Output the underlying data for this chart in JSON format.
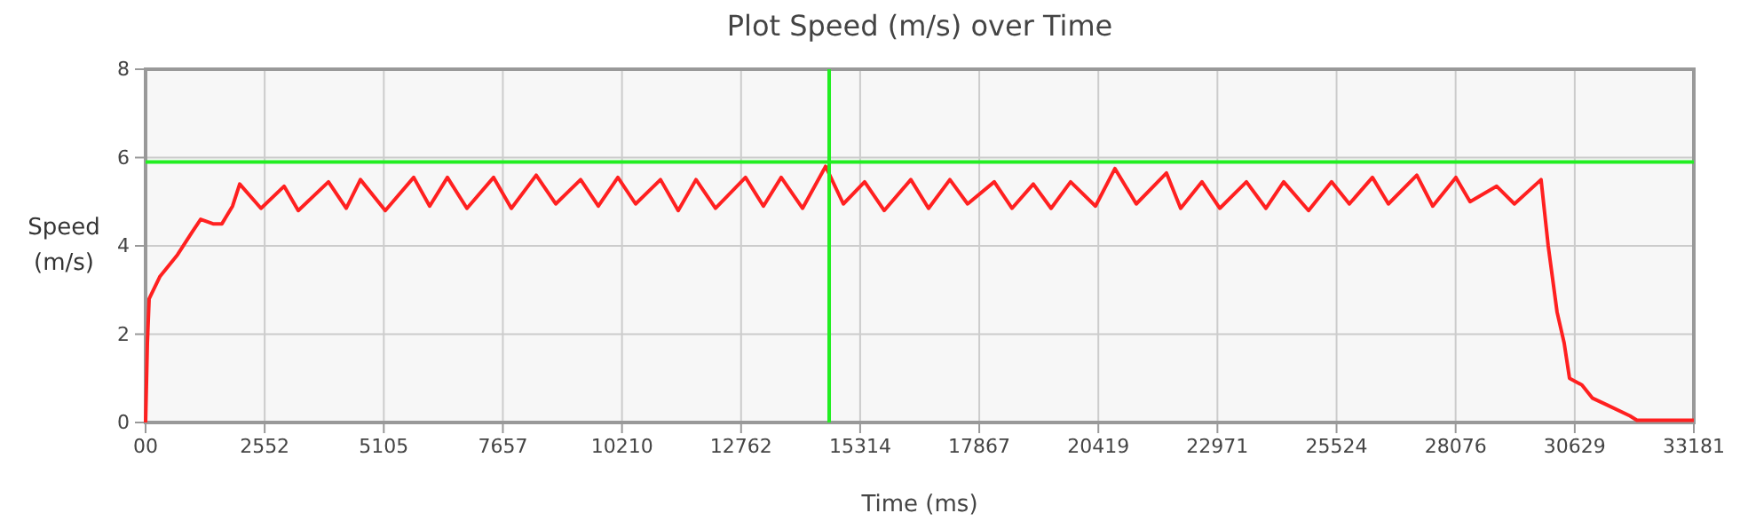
{
  "chart_data": {
    "type": "line",
    "title": "Plot Speed (m/s) over Time",
    "xlabel": "Time (ms)",
    "ylabel": "Speed (m/s)",
    "xlim": [
      0,
      33181
    ],
    "ylim": [
      0,
      8
    ],
    "xticks": [
      {
        "value": 0,
        "label": "00"
      },
      2552,
      5105,
      7657,
      10210,
      12762,
      15314,
      17867,
      20419,
      22971,
      25524,
      28076,
      30629,
      33181
    ],
    "yticks": [
      0,
      2,
      4,
      6,
      8
    ],
    "grid": true,
    "ref_lines": [
      {
        "axis": "y",
        "value": 5.9,
        "color": "#22ee22"
      },
      {
        "axis": "x",
        "value": 14650,
        "color": "#22ee22"
      }
    ],
    "series": [
      {
        "color": "#ff2020",
        "x": [
          0,
          38,
          76,
          304,
          685,
          989,
          1180,
          1446,
          1636,
          1864,
          2017,
          2473,
          2968,
          3272,
          3919,
          4300,
          4604,
          5137,
          5746,
          6088,
          6469,
          6887,
          7458,
          7839,
          8371,
          8790,
          9323,
          9703,
          10122,
          10502,
          11035,
          11415,
          11796,
          12214,
          12857,
          13241,
          13622,
          14079,
          14573,
          14954,
          15410,
          15829,
          16400,
          16780,
          17237,
          17617,
          18188,
          18568,
          19025,
          19406,
          19824,
          20357,
          20775,
          21232,
          21879,
          22183,
          22640,
          23021,
          23592,
          24011,
          24391,
          24924,
          25417,
          25798,
          26293,
          26635,
          27244,
          27586,
          28081,
          28385,
          28956,
          29336,
          29907,
          30060,
          30250,
          30402,
          30517,
          30783,
          31011,
          31316,
          31810,
          31962,
          33181
        ],
        "values": [
          0,
          1.8,
          2.8,
          3.3,
          3.8,
          4.3,
          4.6,
          4.5,
          4.5,
          4.9,
          5.4,
          4.85,
          5.35,
          4.8,
          5.45,
          4.85,
          5.5,
          4.8,
          5.55,
          4.9,
          5.55,
          4.85,
          5.55,
          4.85,
          5.6,
          4.95,
          5.5,
          4.9,
          5.55,
          4.95,
          5.5,
          4.8,
          5.5,
          4.85,
          5.55,
          4.9,
          5.55,
          4.85,
          5.8,
          4.95,
          5.45,
          4.8,
          5.5,
          4.85,
          5.5,
          4.95,
          5.45,
          4.85,
          5.4,
          4.85,
          5.45,
          4.9,
          5.75,
          4.95,
          5.65,
          4.85,
          5.45,
          4.85,
          5.45,
          4.85,
          5.45,
          4.8,
          5.45,
          4.95,
          5.55,
          4.95,
          5.6,
          4.9,
          5.55,
          5.0,
          5.35,
          4.95,
          5.5,
          4.0,
          2.5,
          1.8,
          1.0,
          0.85,
          0.55,
          0.4,
          0.15,
          0.05,
          0.05
        ]
      }
    ]
  }
}
